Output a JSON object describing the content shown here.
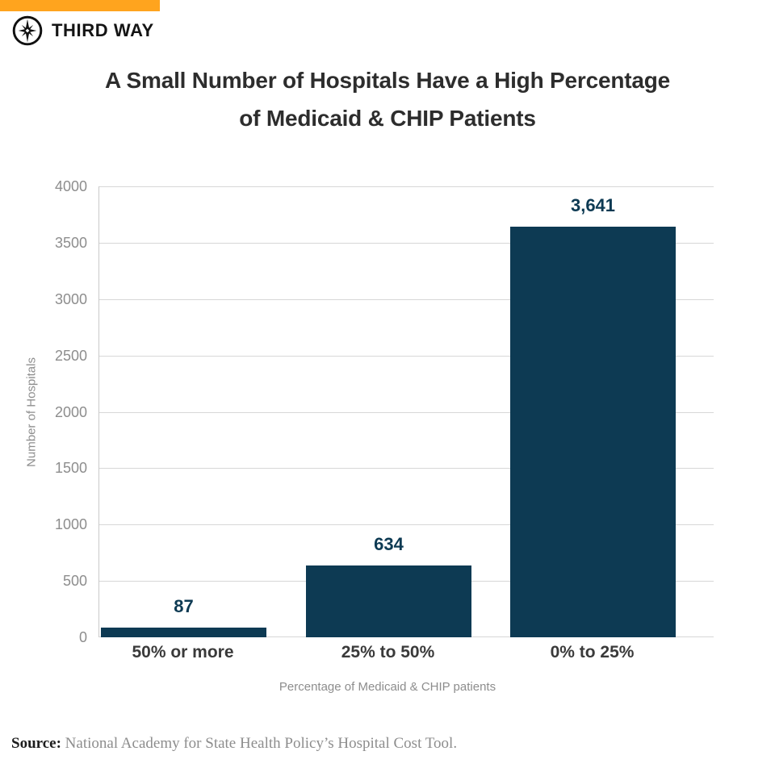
{
  "brand": {
    "name": "THIRD WAY",
    "accent_color": "#FFA41E",
    "logo_icon": "compass-star-icon"
  },
  "title": {
    "line1": "A Small Number of Hospitals Have a High Percentage",
    "line2": "of Medicaid & CHIP Patients"
  },
  "chart_data": {
    "type": "bar",
    "title": "A Small Number of Hospitals Have a High Percentage of Medicaid & CHIP Patients",
    "categories": [
      "50% or more",
      "25% to 50%",
      "0% to 25%"
    ],
    "values": [
      87,
      634,
      3641
    ],
    "value_labels": [
      "87",
      "634",
      "3,641"
    ],
    "xlabel": "Percentage of Medicaid & CHIP patients",
    "ylabel": "Number of Hospitals",
    "ylim": [
      0,
      4000
    ],
    "yticks": [
      0,
      500,
      1000,
      1500,
      2000,
      2500,
      3000,
      3500,
      4000
    ],
    "grid": true,
    "legend_position": "none",
    "bar_color": "#0d3a53",
    "grid_color": "#d7d7d7",
    "axis_line_color": "#c9c9c9",
    "tick_label_color": "#8d8d8d",
    "category_label_color": "#3a3a3a"
  },
  "source": {
    "label": "Source:",
    "text": " National Academy for State Health Policy’s Hospital Cost Tool."
  }
}
